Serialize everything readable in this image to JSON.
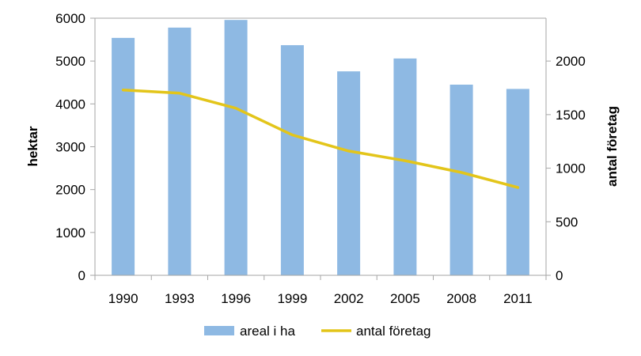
{
  "chart_data": {
    "type": "bar",
    "categories": [
      "1990",
      "1993",
      "1996",
      "1999",
      "2002",
      "2005",
      "2008",
      "2011"
    ],
    "series": [
      {
        "name": "areal i ha",
        "type": "bar",
        "axis": "left",
        "color": "#8EB9E3",
        "values": [
          5540,
          5780,
          5960,
          5370,
          4760,
          5060,
          4450,
          4350
        ]
      },
      {
        "name": "antal företag",
        "type": "line",
        "axis": "right",
        "color": "#E3C51A",
        "values": [
          1730,
          1700,
          1560,
          1310,
          1160,
          1070,
          960,
          820
        ]
      }
    ],
    "ylabel": "hektar",
    "y2label": "antal företag",
    "ylim": [
      0,
      6000
    ],
    "y2lim": [
      0,
      2400
    ],
    "yticks": [
      "0",
      "1000",
      "2000",
      "3000",
      "4000",
      "5000",
      "6000"
    ],
    "y2ticks": [
      "0",
      "500",
      "1000",
      "1500",
      "2000"
    ],
    "grid": false,
    "legend_position": "bottom"
  }
}
